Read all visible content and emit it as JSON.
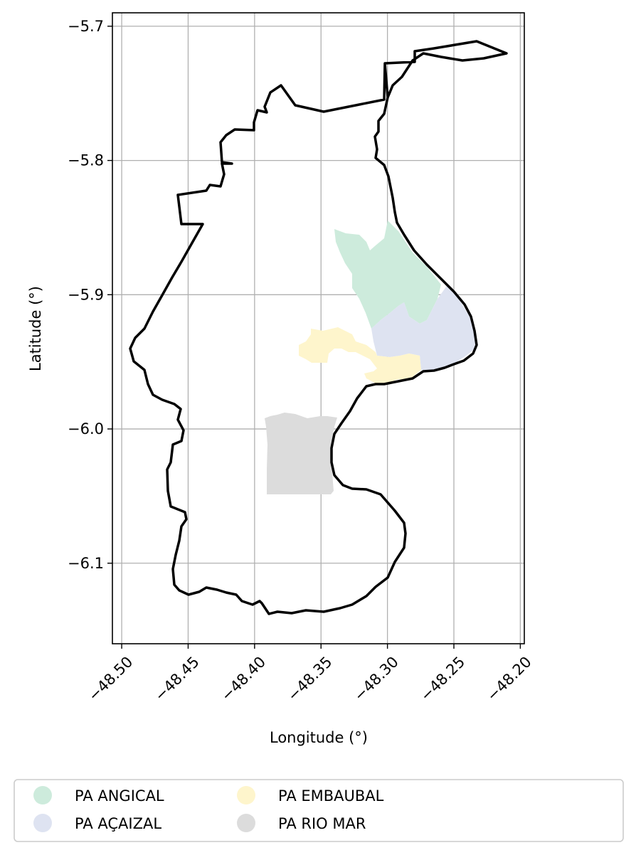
{
  "map": {
    "xlabel": "Longitude (°)",
    "ylabel": "Latitude (°)",
    "xlim": [
      -48.507,
      -48.197
    ],
    "ylim": [
      -6.16,
      -5.69
    ],
    "x_ticks": [
      -48.5,
      -48.45,
      -48.4,
      -48.35,
      -48.3,
      -48.25,
      -48.2
    ],
    "x_tick_labels": [
      "−48.50",
      "−48.45",
      "−48.40",
      "−48.35",
      "−48.30",
      "−48.25",
      "−48.20"
    ],
    "y_ticks": [
      -5.7,
      -5.8,
      -5.9,
      -6.0,
      -6.1
    ],
    "y_tick_labels": [
      "−5.7",
      "−5.8",
      "−5.9",
      "−6.0",
      "−6.1"
    ],
    "grid": true,
    "boundary_color": "#000000",
    "grid_color": "#b0b0b0"
  },
  "legend": {
    "placement": "below",
    "items": [
      {
        "label": "PA ANGICAL",
        "color": "#cdebdc"
      },
      {
        "label": "PA AÇAIZAL",
        "color": "#dee3f1"
      },
      {
        "label": "PA EMBAUBAL",
        "color": "#fef5cc"
      },
      {
        "label": "PA RIO MAR",
        "color": "#dcdcdc"
      }
    ]
  }
}
